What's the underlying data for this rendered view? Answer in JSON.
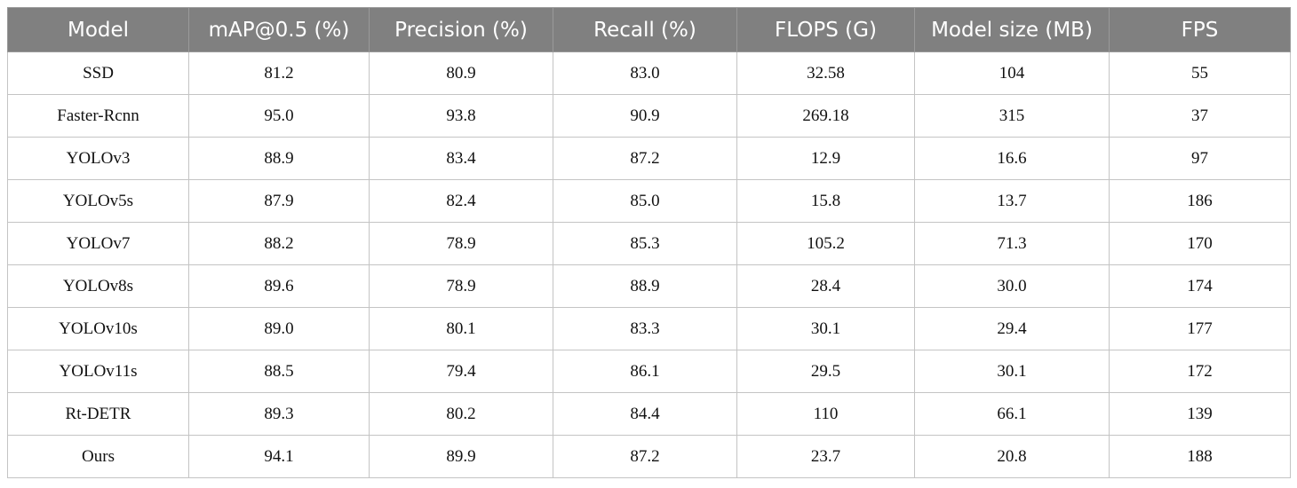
{
  "table": {
    "header": [
      "Model",
      "mAP@0.5 (%)",
      "Precision (%)",
      "Recall (%)",
      "FLOPS (G)",
      "Model size (MB)",
      "FPS"
    ],
    "rows": [
      [
        "SSD",
        "81.2",
        "80.9",
        "83.0",
        "32.58",
        "104",
        "55"
      ],
      [
        "Faster-Rcnn",
        "95.0",
        "93.8",
        "90.9",
        "269.18",
        "315",
        "37"
      ],
      [
        "YOLOv3",
        "88.9",
        "83.4",
        "87.2",
        "12.9",
        "16.6",
        "97"
      ],
      [
        "YOLOv5s",
        "87.9",
        "82.4",
        "85.0",
        "15.8",
        "13.7",
        "186"
      ],
      [
        "YOLOv7",
        "88.2",
        "78.9",
        "85.3",
        "105.2",
        "71.3",
        "170"
      ],
      [
        "YOLOv8s",
        "89.6",
        "78.9",
        "88.9",
        "28.4",
        "30.0",
        "174"
      ],
      [
        "YOLOv10s",
        "89.0",
        "80.1",
        "83.3",
        "30.1",
        "29.4",
        "177"
      ],
      [
        "YOLOv11s",
        "88.5",
        "79.4",
        "86.1",
        "29.5",
        "30.1",
        "172"
      ],
      [
        "Rt-DETR",
        "89.3",
        "80.2",
        "84.4",
        "110",
        "66.1",
        "139"
      ],
      [
        "Ours",
        "94.1",
        "89.9",
        "87.2",
        "23.7",
        "20.8",
        "188"
      ]
    ]
  }
}
